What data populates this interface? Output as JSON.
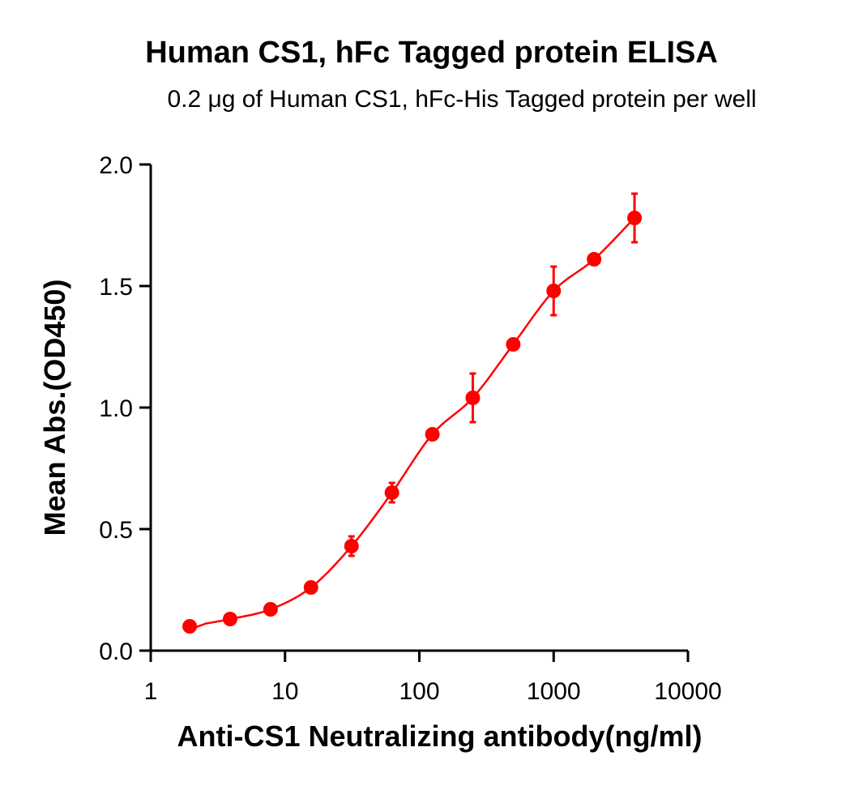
{
  "chart_data": {
    "type": "scatter",
    "title": "Human CS1, hFc Tagged protein ELISA",
    "subtitle": "0.2 μg of Human CS1, hFc-His Tagged protein per well",
    "xlabel": "Anti-CS1 Neutralizing antibody(ng/ml)",
    "ylabel": "Mean Abs.(OD450)",
    "xscale": "log",
    "xlim": [
      1,
      10000
    ],
    "ylim": [
      0,
      2.0
    ],
    "x_ticks": [
      "1",
      "10",
      "100",
      "1000",
      "10000"
    ],
    "y_ticks": [
      "0.0",
      "0.5",
      "1.0",
      "1.5",
      "2.0"
    ],
    "grid": false,
    "legend": null,
    "series": [
      {
        "name": "Human CS1, hFc Tagged protein",
        "color": "#ff0000",
        "marker": "circle",
        "fit": "4PL sigmoidal curve",
        "x": [
          1.95,
          3.9,
          7.8,
          15.6,
          31.25,
          62.5,
          125,
          250,
          500,
          1000,
          2000,
          4000
        ],
        "y": [
          0.1,
          0.13,
          0.17,
          0.26,
          0.43,
          0.65,
          0.89,
          1.04,
          1.26,
          1.48,
          1.61,
          1.78
        ],
        "error": [
          0.01,
          0.01,
          0.01,
          0.01,
          0.04,
          0.04,
          0.01,
          0.1,
          0.01,
          0.1,
          0.01,
          0.1
        ]
      }
    ]
  }
}
